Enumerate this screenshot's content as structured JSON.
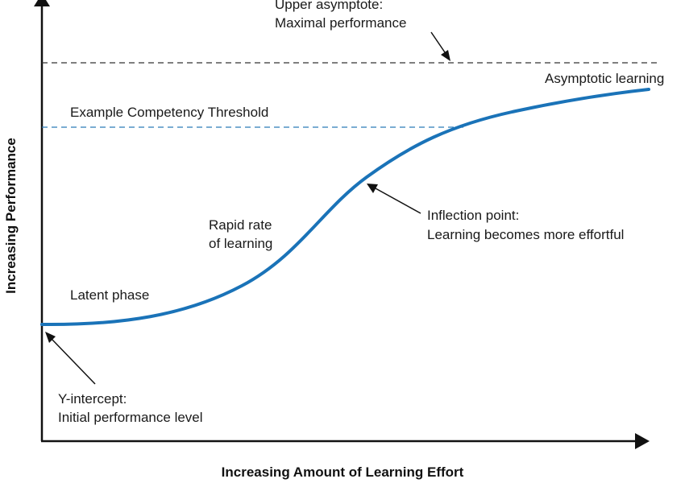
{
  "axes": {
    "x_title": "Increasing Amount of Learning Effort",
    "y_title": "Increasing Performance"
  },
  "annotations": {
    "upper_asymptote_line1": "Upper asymptote:",
    "upper_asymptote_line2": "Maximal performance",
    "asymptotic_learning": "Asymptotic learning",
    "competency_threshold": "Example Competency Threshold",
    "rapid_line1": "Rapid rate",
    "rapid_line2": "of learning",
    "inflection_line1": "Inflection point:",
    "inflection_line2": "Learning becomes more effortful",
    "latent_phase": "Latent phase",
    "y_intercept_line1": "Y-intercept:",
    "y_intercept_line2": "Initial performance level"
  },
  "colors": {
    "curve": "#1a73b8",
    "threshold_line": "#2a7ab8",
    "asymptote_line": "#333333",
    "axis": "#111111"
  }
}
